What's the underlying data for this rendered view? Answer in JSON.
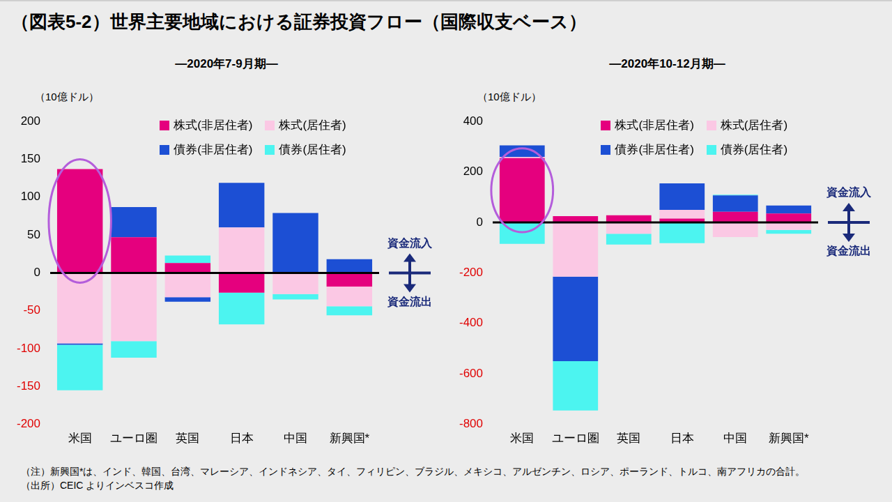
{
  "title": "（図表5-2）世界主要地域における証券投資フロー（国際収支ベース）",
  "notes": [
    "（注）新興国*は、インド、韓国、台湾、マレーシア、インドネシア、タイ、フィリピン、ブラジル、メキシコ、アルゼンチン、ロシア、ポーランド、トルコ、南アフリカの合計。",
    "（出所）CEIC よりインベスコ作成"
  ],
  "chart_data": [
    {
      "type": "bar",
      "title": "—2020年7-9月期—",
      "y_label": "（10億ドル）",
      "categories": [
        "米国",
        "ユーロ圏",
        "英国",
        "日本",
        "中国",
        "新興国*"
      ],
      "series": [
        {
          "name": "株式(非居住者)",
          "color": "#e5007e",
          "values": [
            137,
            47,
            13,
            -26,
            1,
            -18
          ]
        },
        {
          "name": "株式(居住者)",
          "color": "#fbc8e4",
          "values": [
            -93,
            -90,
            -32,
            60,
            -28,
            -26
          ]
        },
        {
          "name": "債券(非居住者)",
          "color": "#1c4fd4",
          "values": [
            -2,
            40,
            -6,
            59,
            78,
            18
          ]
        },
        {
          "name": "債券(居住者)",
          "color": "#4cf4f0",
          "values": [
            -60,
            -22,
            10,
            -42,
            -7,
            -12
          ]
        }
      ],
      "ylim": [
        -200,
        200
      ],
      "yticks": [
        -200,
        -150,
        -100,
        -50,
        0,
        50,
        100,
        150,
        200
      ],
      "stacked": true,
      "grid": false,
      "legend": "top",
      "annotations": [
        "資金流入",
        "資金流出"
      ]
    },
    {
      "type": "bar",
      "title": "—2020年10-12月期—",
      "y_label": "（10億ドル）",
      "categories": [
        "米国",
        "ユーロ圏",
        "英国",
        "日本",
        "中国",
        "新興国*"
      ],
      "series": [
        {
          "name": "株式(非居住者)",
          "color": "#e5007e",
          "values": [
            255,
            25,
            28,
            15,
            42,
            35
          ]
        },
        {
          "name": "株式(居住者)",
          "color": "#fbc8e4",
          "values": [
            5,
            -215,
            -45,
            35,
            -58,
            -30
          ]
        },
        {
          "name": "債券(非居住者)",
          "color": "#1c4fd4",
          "values": [
            45,
            -335,
            0,
            105,
            65,
            32
          ]
        },
        {
          "name": "債券(居住者)",
          "color": "#4cf4f0",
          "values": [
            -85,
            -195,
            -43,
            -82,
            3,
            -15
          ]
        }
      ],
      "ylim": [
        -800,
        400
      ],
      "yticks": [
        -800,
        -600,
        -400,
        -200,
        0,
        200,
        400
      ],
      "stacked": true,
      "grid": false,
      "legend": "top",
      "annotations": [
        "資金流入",
        "資金流出"
      ]
    }
  ]
}
